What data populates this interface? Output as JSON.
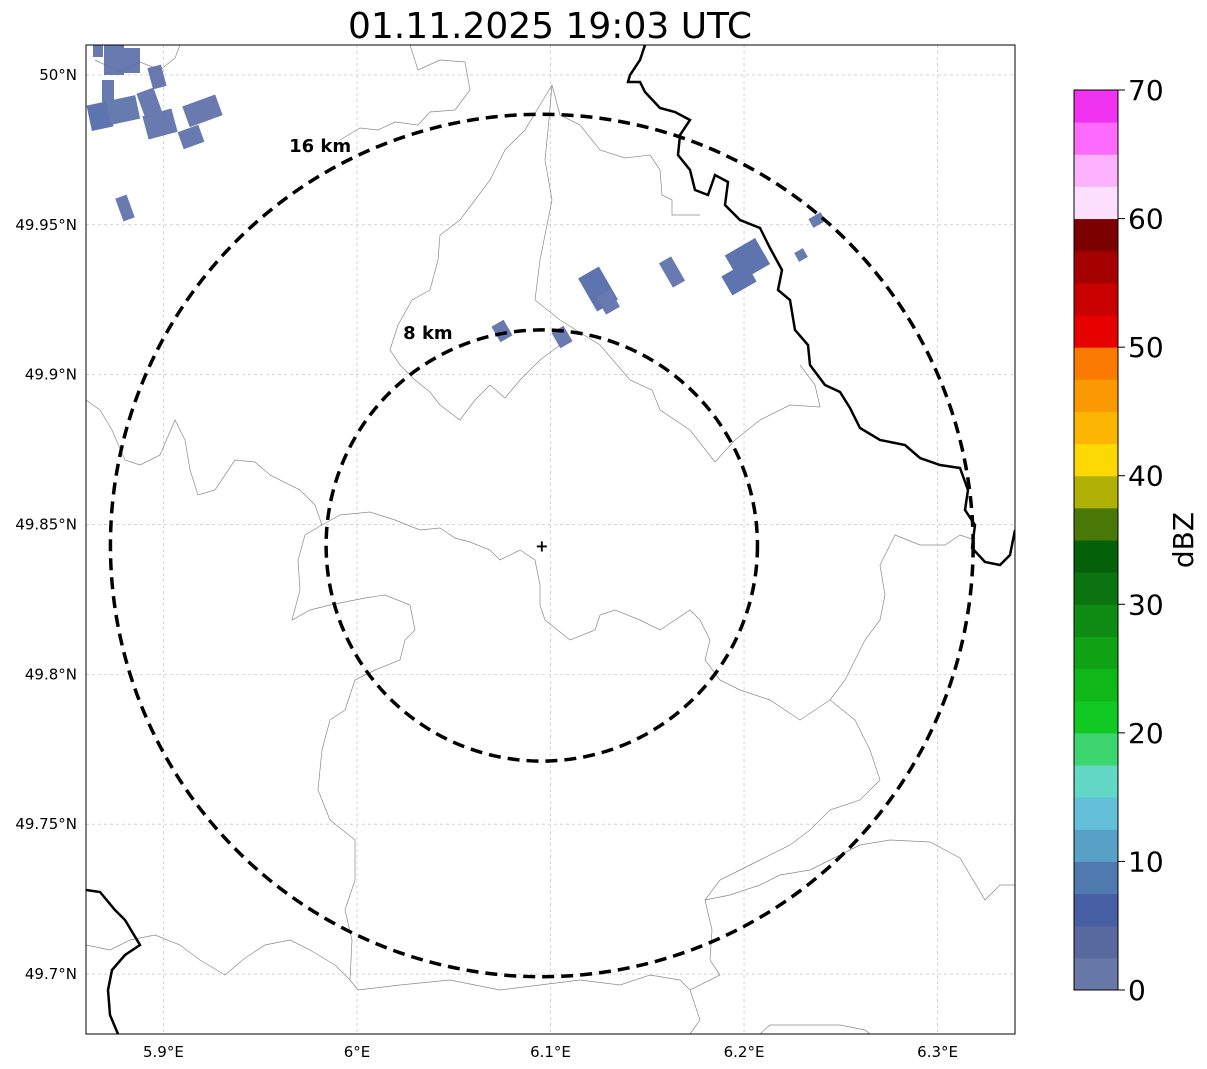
{
  "title": "01.11.2025 19:03 UTC",
  "map": {
    "lon_range": [
      5.86,
      6.34
    ],
    "lat_range": [
      49.68,
      50.01
    ],
    "lon_ticks": [
      {
        "value": 5.9,
        "label": "5.9°E"
      },
      {
        "value": 6.0,
        "label": "6°E"
      },
      {
        "value": 6.1,
        "label": "6.1°E"
      },
      {
        "value": 6.2,
        "label": "6.2°E"
      },
      {
        "value": 6.3,
        "label": "6.3°E"
      }
    ],
    "lat_ticks": [
      {
        "value": 50.0,
        "label": "50°N"
      },
      {
        "value": 49.95,
        "label": "49.95°N"
      },
      {
        "value": 49.9,
        "label": "49.9°N"
      },
      {
        "value": 49.85,
        "label": "49.85°N"
      },
      {
        "value": 49.8,
        "label": "49.8°N"
      },
      {
        "value": 49.75,
        "label": "49.75°N"
      },
      {
        "value": 49.7,
        "label": "49.7°N"
      }
    ],
    "gridlines": true,
    "center": {
      "lon": 6.0955,
      "lat": 49.843
    },
    "range_rings": [
      {
        "radius_km": 8,
        "label": "8 km"
      },
      {
        "radius_km": 16,
        "label": "16 km"
      }
    ]
  },
  "colorbar": {
    "label": "dBZ",
    "min": 0,
    "max": 70,
    "tick_labels": [
      "0",
      "10",
      "20",
      "30",
      "40",
      "50",
      "60",
      "70"
    ],
    "colors": [
      "#6777a7",
      "#5869a0",
      "#4760a3",
      "#4f7ab0",
      "#58a0c6",
      "#63bfd9",
      "#62d7c6",
      "#3dd56e",
      "#12c823",
      "#10b718",
      "#0fa313",
      "#0d8b12",
      "#0b7410",
      "#056109",
      "#497806",
      "#b0b107",
      "#fcd902",
      "#fbb502",
      "#fb9902",
      "#fb7b02",
      "#e70000",
      "#c80000",
      "#a50000",
      "#7d0000",
      "#fde0fd",
      "#fdb2fd",
      "#fd6afd",
      "#f032f1"
    ]
  },
  "reflectivity_color": "#5a70a8"
}
